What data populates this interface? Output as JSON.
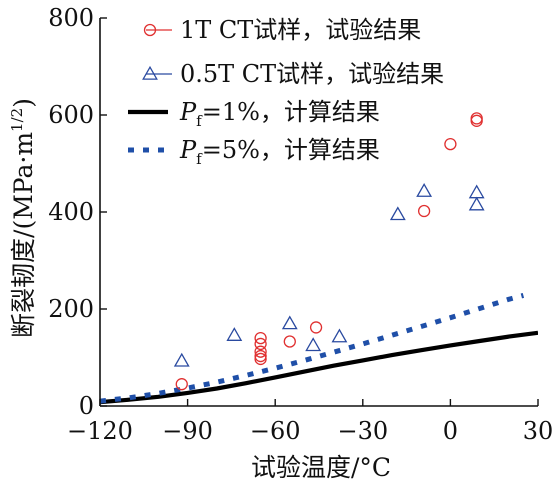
{
  "chart_data": {
    "type": "scatter",
    "xlabel": "试验温度/°C",
    "ylabel": "断裂韧度/(MPa·m",
    "ylabel_exp": "1/2",
    "ylabel_tail": ")",
    "xlim": [
      -120,
      30
    ],
    "ylim": [
      0,
      800
    ],
    "xticks": [
      -120,
      -90,
      -60,
      -30,
      0,
      30
    ],
    "xtick_labels": [
      "−120",
      "−90",
      "−60",
      "−30",
      "0",
      "30"
    ],
    "yticks": [
      0,
      200,
      400,
      600,
      800
    ],
    "ytick_labels": [
      "0",
      "200",
      "400",
      "600",
      "800"
    ],
    "grid": false,
    "legend_position": "top-right",
    "series": [
      {
        "name": "1T CT试样，试验结果",
        "kind": "points",
        "marker": "circle",
        "color": "#e03030",
        "points": [
          [
            -92,
            45
          ],
          [
            -65,
            140
          ],
          [
            -65,
            128
          ],
          [
            -65,
            112
          ],
          [
            -65,
            103
          ],
          [
            -65,
            97
          ],
          [
            -55,
            133
          ],
          [
            -46,
            162
          ],
          [
            -9,
            402
          ],
          [
            0,
            540
          ],
          [
            9,
            593
          ],
          [
            9,
            588
          ]
        ]
      },
      {
        "name": "0.5T CT试样，试验结果",
        "kind": "points",
        "marker": "triangle",
        "color": "#2a4aa0",
        "points": [
          [
            -92,
            93
          ],
          [
            -74,
            146
          ],
          [
            -55,
            170
          ],
          [
            -47,
            125
          ],
          [
            -38,
            143
          ],
          [
            -18,
            395
          ],
          [
            -9,
            443
          ],
          [
            9,
            440
          ],
          [
            9,
            415
          ]
        ]
      },
      {
        "name_prefix": "P",
        "name_sub": "f",
        "name_suffix": "=1%，计算结果",
        "kind": "line",
        "style": "solid",
        "color": "#000000",
        "points": [
          [
            -120,
            8
          ],
          [
            -110,
            13
          ],
          [
            -100,
            19
          ],
          [
            -90,
            27
          ],
          [
            -80,
            36
          ],
          [
            -70,
            47
          ],
          [
            -60,
            59
          ],
          [
            -50,
            71
          ],
          [
            -40,
            83
          ],
          [
            -30,
            94
          ],
          [
            -20,
            105
          ],
          [
            -10,
            115
          ],
          [
            0,
            125
          ],
          [
            10,
            134
          ],
          [
            20,
            143
          ],
          [
            30,
            151
          ]
        ]
      },
      {
        "name_prefix": "P",
        "name_sub": "f",
        "name_suffix": "=5%，计算结果",
        "kind": "line",
        "style": "dotted",
        "color": "#1f4fa8",
        "points": [
          [
            -120,
            10
          ],
          [
            -110,
            17
          ],
          [
            -100,
            26
          ],
          [
            -90,
            37
          ],
          [
            -80,
            49
          ],
          [
            -70,
            63
          ],
          [
            -60,
            78
          ],
          [
            -50,
            94
          ],
          [
            -40,
            111
          ],
          [
            -30,
            128
          ],
          [
            -20,
            146
          ],
          [
            -10,
            164
          ],
          [
            0,
            182
          ],
          [
            10,
            201
          ],
          [
            20,
            220
          ],
          [
            25,
            228
          ]
        ]
      }
    ]
  }
}
